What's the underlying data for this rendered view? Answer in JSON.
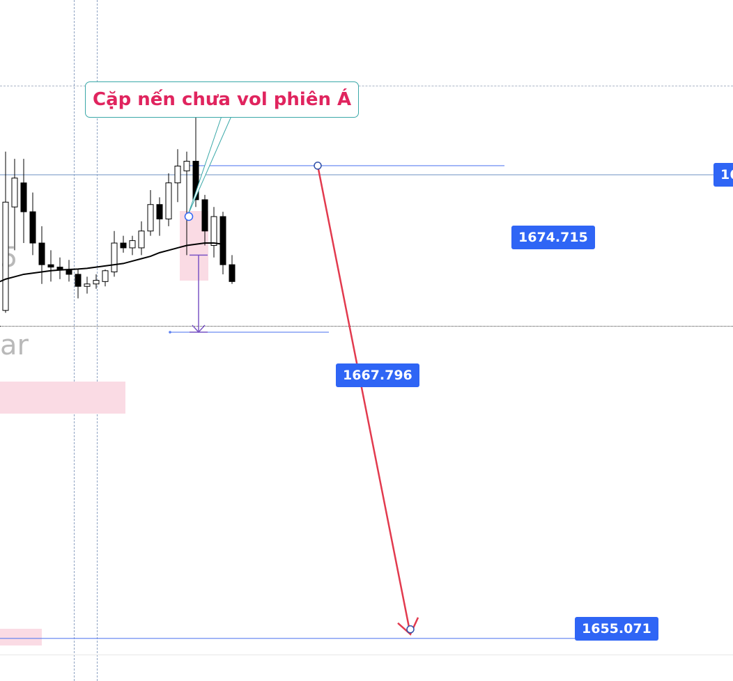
{
  "chart_data": {
    "type": "candlestick",
    "title": "",
    "annotation": {
      "text": "Cặp nến chưa vol phiên Á"
    },
    "price_labels": [
      {
        "id": "upper-level",
        "value": "1674.715"
      },
      {
        "id": "mid-level",
        "value": "1667.796"
      },
      {
        "id": "target-level",
        "value": "1655.071"
      },
      {
        "id": "edge-level",
        "value": "16"
      }
    ],
    "ghost_text": "ar",
    "candles": [
      {
        "o": 1668.7,
        "h": 1675.3,
        "l": 1668.6,
        "c": 1673.2
      },
      {
        "o": 1673.0,
        "h": 1675.0,
        "l": 1671.2,
        "c": 1674.2
      },
      {
        "o": 1674.0,
        "h": 1675.0,
        "l": 1671.5,
        "c": 1672.8
      },
      {
        "o": 1672.8,
        "h": 1673.6,
        "l": 1671.0,
        "c": 1671.5
      },
      {
        "o": 1671.5,
        "h": 1672.2,
        "l": 1669.8,
        "c": 1670.6
      },
      {
        "o": 1670.6,
        "h": 1671.2,
        "l": 1669.9,
        "c": 1670.5
      },
      {
        "o": 1670.5,
        "h": 1670.9,
        "l": 1670.0,
        "c": 1670.4
      },
      {
        "o": 1670.4,
        "h": 1670.8,
        "l": 1669.9,
        "c": 1670.2
      },
      {
        "o": 1670.2,
        "h": 1670.4,
        "l": 1669.2,
        "c": 1669.7
      },
      {
        "o": 1669.7,
        "h": 1670.1,
        "l": 1669.4,
        "c": 1669.8
      },
      {
        "o": 1669.8,
        "h": 1670.2,
        "l": 1669.6,
        "c": 1669.95
      },
      {
        "o": 1669.9,
        "h": 1670.4,
        "l": 1669.7,
        "c": 1670.35
      },
      {
        "o": 1670.3,
        "h": 1672.0,
        "l": 1670.1,
        "c": 1671.5
      },
      {
        "o": 1671.5,
        "h": 1671.8,
        "l": 1671.1,
        "c": 1671.3
      },
      {
        "o": 1671.3,
        "h": 1671.8,
        "l": 1671.0,
        "c": 1671.6
      },
      {
        "o": 1671.3,
        "h": 1672.4,
        "l": 1671.0,
        "c": 1672.0
      },
      {
        "o": 1672.0,
        "h": 1673.7,
        "l": 1671.8,
        "c": 1673.1
      },
      {
        "o": 1673.1,
        "h": 1673.4,
        "l": 1671.8,
        "c": 1672.5
      },
      {
        "o": 1672.5,
        "h": 1674.4,
        "l": 1672.2,
        "c": 1674.0
      },
      {
        "o": 1674.0,
        "h": 1675.4,
        "l": 1673.2,
        "c": 1674.7
      },
      {
        "o": 1674.5,
        "h": 1675.3,
        "l": 1671.0,
        "c": 1674.9
      },
      {
        "o": 1674.9,
        "h": 1677.0,
        "l": 1673.0,
        "c": 1673.3
      },
      {
        "o": 1673.3,
        "h": 1673.5,
        "l": 1671.4,
        "c": 1672.0
      },
      {
        "o": 1671.4,
        "h": 1673.0,
        "l": 1670.9,
        "c": 1672.6
      },
      {
        "o": 1672.6,
        "h": 1672.8,
        "l": 1670.2,
        "c": 1670.6
      },
      {
        "o": 1670.6,
        "h": 1671.0,
        "l": 1669.8,
        "c": 1669.9
      }
    ],
    "moving_average": [
      1670.0,
      1670.1,
      1670.2,
      1670.25,
      1670.3,
      1670.35,
      1670.38,
      1670.4,
      1670.42,
      1670.45,
      1670.5,
      1670.55,
      1670.6,
      1670.65,
      1670.75,
      1670.85,
      1670.95,
      1671.1,
      1671.2,
      1671.3,
      1671.4,
      1671.45,
      1671.5,
      1671.5,
      1671.45
    ],
    "ylim": [
      1653.3,
      1681.6
    ],
    "arrow": {
      "from": 1674.715,
      "to": 1655.071,
      "color": "#e23a4e"
    },
    "measure": {
      "from": 1671.0,
      "to": 1667.796,
      "color": "#7a55c4"
    },
    "colors": {
      "up": "#ffffff",
      "down": "#000000",
      "wick": "#000000",
      "level_line": "#5b7ff0",
      "highlight": "#fadbe4",
      "ma": "#000000"
    }
  }
}
